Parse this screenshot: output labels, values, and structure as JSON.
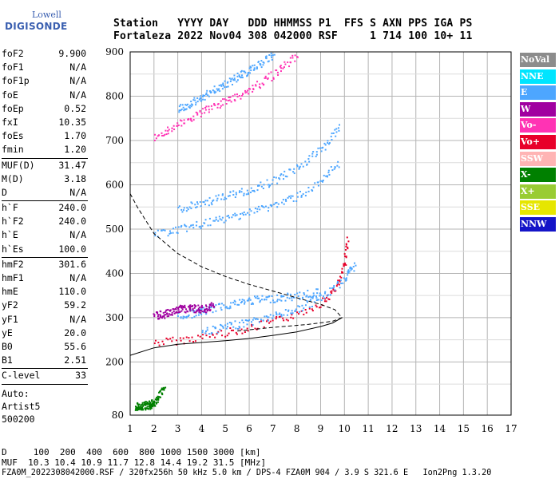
{
  "logo": {
    "line1": "Lowell",
    "line2": "DIGISONDE"
  },
  "header": {
    "labels": "Station   YYYY DAY   DDD HHMMSS P1  FFS S AXN PPS IGA PS",
    "values": "Fortaleza 2022 Nov04 308 042000 RSF     1 714 100 10+ 11"
  },
  "params": [
    {
      "key": "foF2",
      "value": "9.900"
    },
    {
      "key": "foF1",
      "value": "N/A"
    },
    {
      "key": "foF1p",
      "value": "N/A"
    },
    {
      "key": "foE",
      "value": "N/A"
    },
    {
      "key": "foEp",
      "value": "0.52"
    },
    {
      "key": "fxI",
      "value": "10.35"
    },
    {
      "key": "foEs",
      "value": "1.70"
    },
    {
      "key": "fmin",
      "value": "1.20"
    },
    {
      "key": "MUF(D)",
      "value": "31.47"
    },
    {
      "key": "M(D)",
      "value": "3.18"
    },
    {
      "key": "D",
      "value": "N/A"
    },
    {
      "key": "h`F",
      "value": "240.0"
    },
    {
      "key": "h`F2",
      "value": "240.0"
    },
    {
      "key": "h`E",
      "value": "N/A"
    },
    {
      "key": "h`Es",
      "value": "100.0"
    },
    {
      "key": "hmF2",
      "value": "301.6"
    },
    {
      "key": "hmF1",
      "value": "N/A"
    },
    {
      "key": "hmE",
      "value": "110.0"
    },
    {
      "key": "yF2",
      "value": "59.2"
    },
    {
      "key": "yF1",
      "value": "N/A"
    },
    {
      "key": "yE",
      "value": "20.0"
    },
    {
      "key": "B0",
      "value": "55.6"
    },
    {
      "key": "B1",
      "value": "2.51"
    },
    {
      "key": "C-level",
      "value": "33"
    }
  ],
  "autoscale": {
    "line1": "Auto:",
    "line2": "Artist5",
    "line3": "500200"
  },
  "footer": {
    "line1": "D     100  200  400  600  800 1000 1500 3000 [km]",
    "line2": "MUF  10.3 10.4 10.9 11.7 12.8 14.4 19.2 31.5 [MHz]",
    "line3": "FZA0M_2022308042000.RSF / 320fx256h 50 kHz 5.0 km / DPS-4 FZA0M 904 / 3.9 S 321.6 E   Ion2Png 1.3.20"
  },
  "legend": [
    {
      "label": "NoVal",
      "color": "#8c8c8c"
    },
    {
      "label": "NNE",
      "color": "#00e5ff"
    },
    {
      "label": "E",
      "color": "#4da6ff"
    },
    {
      "label": "W",
      "color": "#a000a0"
    },
    {
      "label": "Vo-",
      "color": "#ff33b4"
    },
    {
      "label": "Vo+",
      "color": "#e8002a"
    },
    {
      "label": "SSW",
      "color": "#ffb4b4"
    },
    {
      "label": "X-",
      "color": "#008000"
    },
    {
      "label": "X+",
      "color": "#99cc33"
    },
    {
      "label": "SSE",
      "color": "#e6e600"
    },
    {
      "label": "NNW",
      "color": "#1414c8"
    }
  ],
  "chart_data": {
    "type": "scatter",
    "x_ticks": [
      "1",
      "2",
      "3",
      "4",
      "5",
      "6",
      "7",
      "8",
      "9",
      "10",
      "11",
      "12",
      "13",
      "14",
      "15",
      "16",
      "17"
    ],
    "y_ticks": [
      "80",
      "200",
      "300",
      "400",
      "500",
      "600",
      "700",
      "800",
      "900"
    ],
    "xlim": [
      1,
      17
    ],
    "ylim": [
      80,
      900
    ],
    "grid": true,
    "curves": {
      "true_height_profile": {
        "x": [
          1.0,
          2.0,
          3.0,
          4.0,
          5.0,
          6.0,
          7.0,
          8.0,
          9.0,
          9.5,
          9.9
        ],
        "y": [
          215,
          232,
          240,
          244,
          248,
          253,
          260,
          268,
          280,
          288,
          300
        ]
      },
      "model_profile_dashed": {
        "x": [
          1.0,
          1.3,
          2.0,
          3.0,
          4.0,
          5.0,
          6.0,
          7.0,
          8.0,
          9.0,
          9.6,
          9.9,
          9.5,
          8.5,
          7.0,
          5.5
        ],
        "y": [
          580,
          550,
          490,
          445,
          415,
          393,
          375,
          360,
          345,
          330,
          318,
          300,
          292,
          285,
          278,
          270
        ]
      }
    },
    "traces": [
      {
        "name": "F2 O-trace",
        "color": "#e8002a",
        "x": [
          2.0,
          3.0,
          4.0,
          5.0,
          6.0,
          7.0,
          8.0,
          9.0,
          9.5,
          9.8,
          10.0,
          10.1
        ],
        "y": [
          245,
          250,
          258,
          268,
          278,
          292,
          310,
          335,
          360,
          385,
          430,
          480
        ]
      },
      {
        "name": "F2 X-trace",
        "color": "#4da6ff",
        "x": [
          4.0,
          5.0,
          6.0,
          7.0,
          8.0,
          9.0,
          10.0,
          10.4
        ],
        "y": [
          270,
          280,
          292,
          305,
          320,
          345,
          390,
          420
        ]
      },
      {
        "name": "Es band",
        "color": "#4da6ff",
        "x": [
          3.0,
          4.0,
          5.0,
          6.0,
          7.0,
          8.0,
          9.0
        ],
        "y": [
          305,
          315,
          330,
          340,
          345,
          350,
          360
        ]
      },
      {
        "name": "Es low W",
        "color": "#a000a0",
        "x": [
          2.0,
          2.5,
          3.0,
          3.5,
          4.0,
          4.5
        ],
        "y": [
          305,
          310,
          320,
          322,
          320,
          328
        ]
      },
      {
        "name": "2nd hop",
        "color": "#4da6ff",
        "x": [
          2.0,
          3.0,
          4.0,
          5.0,
          6.0,
          7.0,
          8.0,
          9.0,
          9.7
        ],
        "y": [
          490,
          500,
          512,
          525,
          540,
          555,
          575,
          605,
          650
        ]
      },
      {
        "name": "2nd hop upper",
        "color": "#4da6ff",
        "x": [
          3.0,
          4.0,
          5.0,
          6.0,
          7.0,
          8.0,
          9.0,
          9.8
        ],
        "y": [
          545,
          560,
          575,
          590,
          610,
          640,
          680,
          730
        ]
      },
      {
        "name": "3rd hop",
        "color": "#ff33b4",
        "x": [
          2.0,
          3.0,
          4.0,
          5.0,
          6.0,
          7.0,
          8.0
        ],
        "y": [
          710,
          735,
          765,
          790,
          815,
          850,
          895
        ]
      },
      {
        "name": "3rd hop upper",
        "color": "#4da6ff",
        "x": [
          3.0,
          4.0,
          5.0,
          6.0,
          7.0
        ],
        "y": [
          770,
          800,
          830,
          860,
          895
        ]
      },
      {
        "name": "E layer",
        "color": "#008000",
        "x": [
          1.2,
          1.5,
          1.8,
          2.0,
          2.4
        ],
        "y": [
          100,
          102,
          104,
          110,
          140
        ]
      }
    ]
  }
}
